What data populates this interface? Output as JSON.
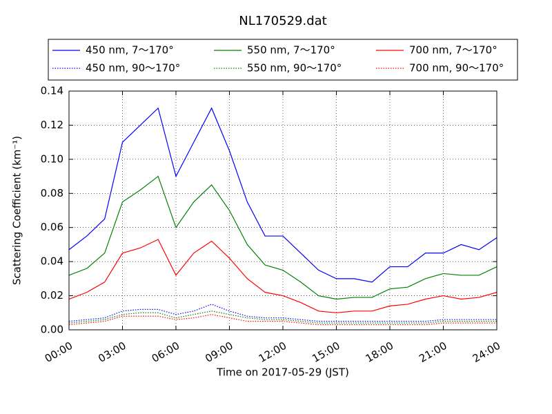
{
  "chart_data": {
    "type": "line",
    "title": "NL170529.dat",
    "xlabel": "Time on 2017-05-29 (JST)",
    "ylabel": "Scattering Coefficient (km⁻¹)",
    "x": [
      0,
      1,
      2,
      3,
      4,
      5,
      6,
      7,
      8,
      9,
      10,
      11,
      12,
      13,
      14,
      15,
      16,
      17,
      18,
      19,
      20,
      21,
      22,
      23,
      24
    ],
    "xlim": [
      0,
      24
    ],
    "xticks": [
      {
        "value": 0,
        "label": "00:00"
      },
      {
        "value": 3,
        "label": "03:00"
      },
      {
        "value": 6,
        "label": "06:00"
      },
      {
        "value": 9,
        "label": "09:00"
      },
      {
        "value": 12,
        "label": "12:00"
      },
      {
        "value": 15,
        "label": "15:00"
      },
      {
        "value": 18,
        "label": "18:00"
      },
      {
        "value": 21,
        "label": "21:00"
      },
      {
        "value": 24,
        "label": "24:00"
      }
    ],
    "ylim": [
      0,
      0.14
    ],
    "yticks": [
      {
        "value": 0,
        "label": "0.00"
      },
      0.02,
      0.04,
      0.06,
      0.08,
      {
        "value": 0.1,
        "label": "0.10"
      },
      0.12,
      0.14
    ],
    "grid": true,
    "legend": "top",
    "series": [
      {
        "name": "450 nm, 7～170°",
        "color": "#0000ff",
        "linestyle": "solid",
        "values": [
          0.047,
          0.055,
          0.065,
          0.11,
          0.12,
          0.13,
          0.09,
          0.11,
          0.13,
          0.105,
          0.075,
          0.055,
          0.055,
          0.045,
          0.035,
          0.03,
          0.03,
          0.028,
          0.037,
          0.037,
          0.045,
          0.045,
          0.05,
          0.047,
          0.054
        ]
      },
      {
        "name": "450 nm, 90～170°",
        "color": "#0000ff",
        "linestyle": "dotted",
        "values": [
          0.005,
          0.006,
          0.007,
          0.011,
          0.012,
          0.012,
          0.009,
          0.011,
          0.015,
          0.011,
          0.008,
          0.007,
          0.007,
          0.006,
          0.005,
          0.005,
          0.005,
          0.005,
          0.005,
          0.005,
          0.005,
          0.006,
          0.006,
          0.006,
          0.006
        ]
      },
      {
        "name": "550 nm, 7～170°",
        "color": "#008000",
        "linestyle": "solid",
        "values": [
          0.032,
          0.036,
          0.045,
          0.075,
          0.082,
          0.09,
          0.06,
          0.075,
          0.085,
          0.07,
          0.05,
          0.038,
          0.035,
          0.028,
          0.02,
          0.018,
          0.019,
          0.019,
          0.024,
          0.025,
          0.03,
          0.033,
          0.032,
          0.032,
          0.037
        ]
      },
      {
        "name": "550 nm, 90～170°",
        "color": "#008000",
        "linestyle": "dotted",
        "values": [
          0.004,
          0.005,
          0.006,
          0.009,
          0.01,
          0.01,
          0.007,
          0.009,
          0.011,
          0.009,
          0.007,
          0.006,
          0.006,
          0.005,
          0.004,
          0.004,
          0.004,
          0.004,
          0.004,
          0.004,
          0.004,
          0.005,
          0.005,
          0.005,
          0.005
        ]
      },
      {
        "name": "700 nm, 7～170°",
        "color": "#ff0000",
        "linestyle": "solid",
        "values": [
          0.018,
          0.022,
          0.028,
          0.045,
          0.048,
          0.053,
          0.032,
          0.045,
          0.052,
          0.042,
          0.03,
          0.022,
          0.02,
          0.016,
          0.011,
          0.01,
          0.011,
          0.011,
          0.014,
          0.015,
          0.018,
          0.02,
          0.018,
          0.019,
          0.022
        ]
      },
      {
        "name": "700 nm, 90～170°",
        "color": "#ff0000",
        "linestyle": "dotted",
        "values": [
          0.003,
          0.004,
          0.005,
          0.008,
          0.008,
          0.008,
          0.006,
          0.007,
          0.009,
          0.007,
          0.005,
          0.005,
          0.005,
          0.004,
          0.003,
          0.003,
          0.003,
          0.003,
          0.003,
          0.003,
          0.003,
          0.004,
          0.004,
          0.004,
          0.004
        ]
      }
    ]
  }
}
